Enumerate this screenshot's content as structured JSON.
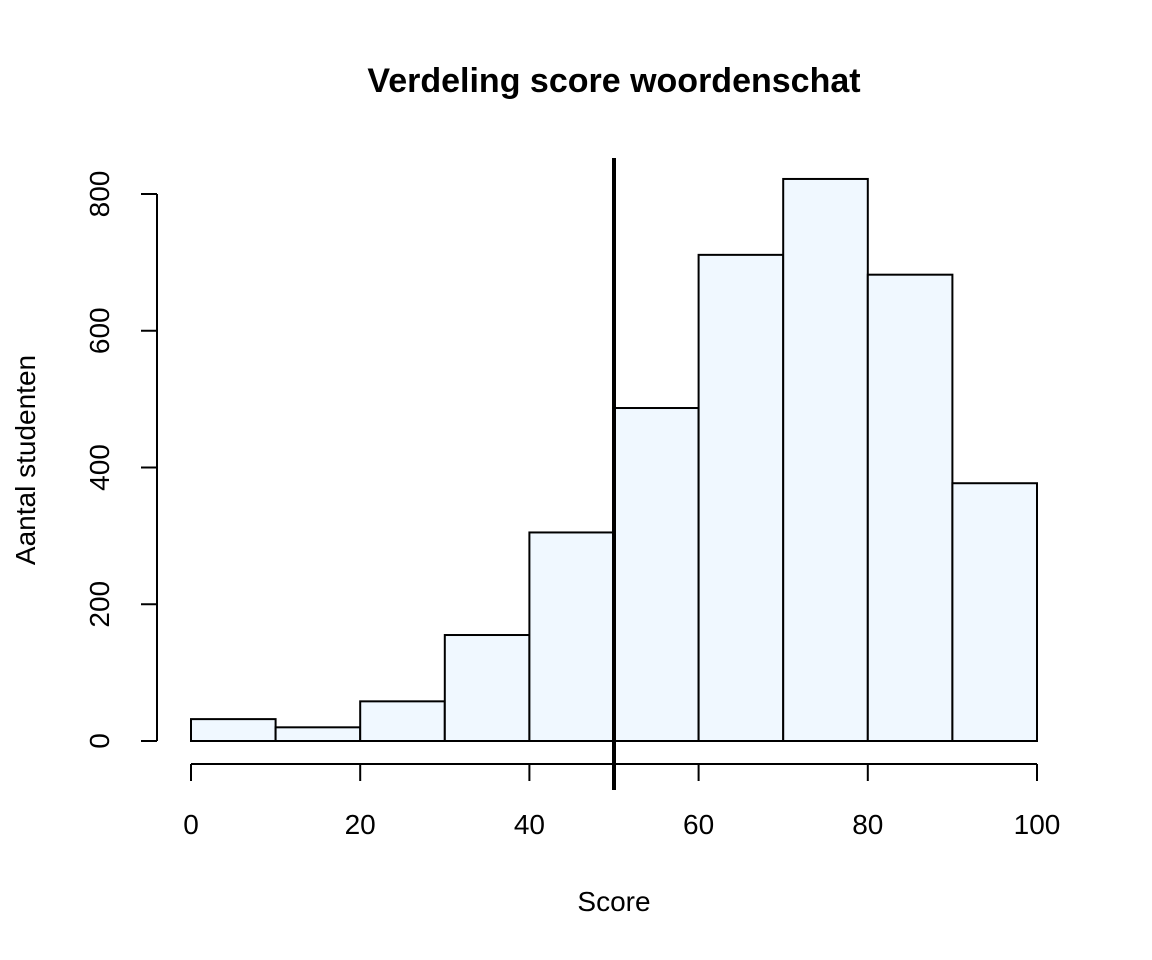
{
  "chart_data": {
    "type": "bar",
    "subtype": "histogram",
    "title": "Verdeling score woordenschat",
    "xlabel": "Score",
    "ylabel": "Aantal studenten",
    "bins": [
      {
        "from": 0,
        "to": 10,
        "count": 32
      },
      {
        "from": 10,
        "to": 20,
        "count": 20
      },
      {
        "from": 20,
        "to": 30,
        "count": 58
      },
      {
        "from": 30,
        "to": 40,
        "count": 155
      },
      {
        "from": 40,
        "to": 50,
        "count": 305
      },
      {
        "from": 50,
        "to": 60,
        "count": 487
      },
      {
        "from": 60,
        "to": 70,
        "count": 711
      },
      {
        "from": 70,
        "to": 80,
        "count": 822
      },
      {
        "from": 80,
        "to": 90,
        "count": 682
      },
      {
        "from": 90,
        "to": 100,
        "count": 377
      }
    ],
    "xlim": [
      0,
      100
    ],
    "ylim": [
      0,
      800
    ],
    "x_ticks": [
      0,
      20,
      40,
      60,
      80,
      100
    ],
    "y_ticks": [
      0,
      200,
      400,
      600,
      800
    ],
    "reference_line": {
      "x": 50
    },
    "bar_color": "#f0f8ff",
    "grid": false,
    "legend": "none"
  }
}
